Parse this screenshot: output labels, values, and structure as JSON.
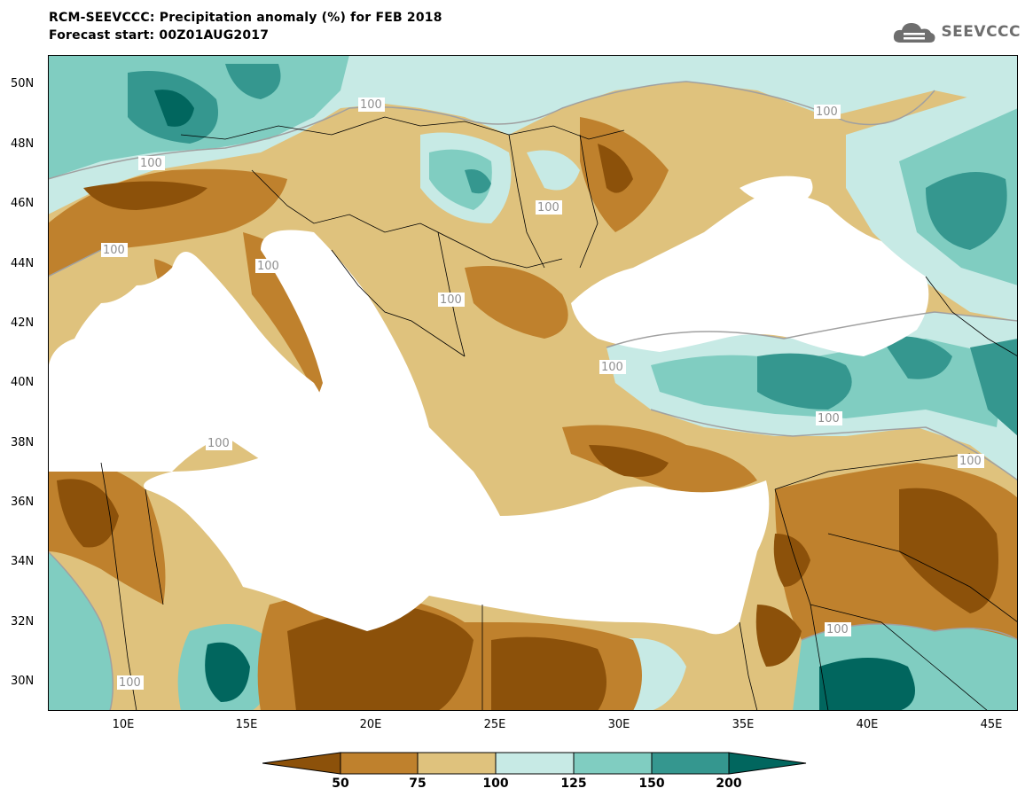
{
  "header": {
    "title": "RCM-SEEVCCC: Precipitation anomaly (%) for FEB 2018",
    "subtitle": "Forecast start: 00Z01AUG2017",
    "logo_text": "SEEVCCC",
    "logo_icon": "cloud-icon"
  },
  "map": {
    "lat_labels": [
      "50N",
      "48N",
      "46N",
      "44N",
      "42N",
      "40N",
      "38N",
      "36N",
      "34N",
      "32N",
      "30N"
    ],
    "lon_labels": [
      "10E",
      "15E",
      "20E",
      "25E",
      "30E",
      "35E",
      "40E",
      "45E"
    ],
    "contour_labels": [
      "100",
      "100",
      "100",
      "100",
      "100",
      "100",
      "100",
      "100",
      "100",
      "100",
      "100",
      "100",
      "100"
    ]
  },
  "legend": {
    "tick_labels": [
      "50",
      "75",
      "100",
      "125",
      "150",
      "200"
    ],
    "colors": [
      "#8c510a",
      "#bf812d",
      "#dfc27d",
      "#c7eae5",
      "#80cdc1",
      "#35978f",
      "#01665e"
    ]
  },
  "colors": {
    "sea": "#ffffff",
    "border": "#000000",
    "contour_line": "#a0a0a0"
  }
}
